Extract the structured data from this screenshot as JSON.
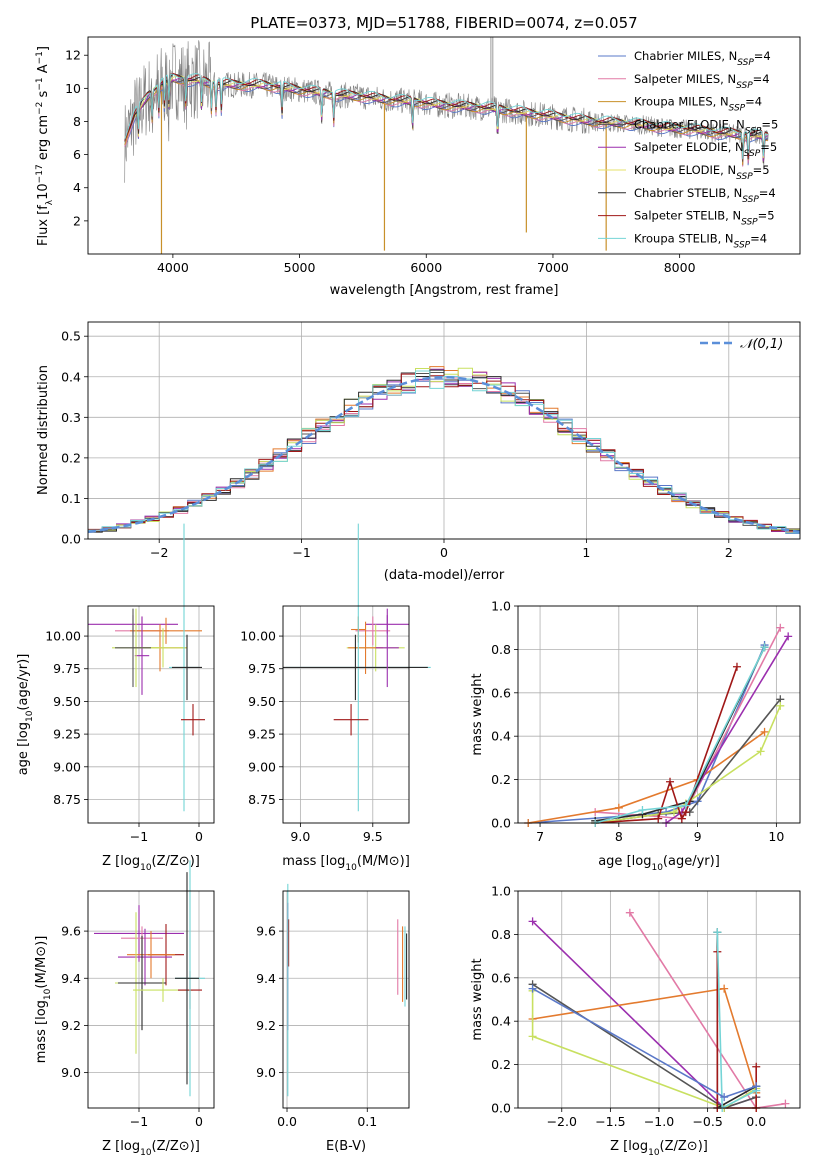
{
  "title": "PLATE=0373, MJD=51788, FIBERID=0074, z=0.057",
  "colors": {
    "spec": [
      "#5a78c8",
      "#e27aa6",
      "#c8902a",
      "#555555",
      "#9b2fae",
      "#e6e26a",
      "#2b2b2b",
      "#a01818",
      "#74d4d6"
    ],
    "hist": [
      "#5a78c8",
      "#e27aa6",
      "#e37a2e",
      "#555555",
      "#9b2fae",
      "#c8e060",
      "#2b2b2b",
      "#a01818",
      "#74d4d6"
    ],
    "normal_curve": "#5b8fd9",
    "grid": "#b0b0b0",
    "observed": "#808080"
  },
  "chart_data": [
    {
      "id": "spectrum",
      "type": "line",
      "title": "PLATE=0373, MJD=51788, FIBERID=0074, z=0.057",
      "xlabel": "wavelength [Angstrom, rest frame]",
      "ylabel": "Flux [f_λ10^-17 erg cm^-2 s^-1 A^-1]",
      "xlim": [
        3330,
        8950
      ],
      "ylim": [
        0,
        13.1
      ],
      "xticks": [
        "4000",
        "5000",
        "6000",
        "7000",
        "8000"
      ],
      "yticks": [
        "2",
        "4",
        "6",
        "8",
        "10",
        "12"
      ],
      "grid": false,
      "legend_position": "top-right",
      "legend": [
        "Chabrier MILES, N_SSP=4",
        "Salpeter MILES, N_SSP=4",
        "Kroupa MILES, N_SSP=4",
        "Chabrier ELODIE, N_SSP=5",
        "Salpeter ELODIE, N_SSP=5",
        "Kroupa ELODIE, N_SSP=5",
        "Chabrier STELIB, N_SSP=4",
        "Salpeter STELIB, N_SSP=5",
        "Kroupa STELIB, N_SSP=4"
      ],
      "model_continuum": {
        "x": [
          3620,
          3700,
          3800,
          3900,
          4000,
          4100,
          4200,
          4300,
          4500,
          4700,
          4900,
          5100,
          5300,
          5500,
          5700,
          5900,
          6100,
          6300,
          6500,
          6700,
          6900,
          7100,
          7300,
          7500,
          7700,
          7900,
          8100,
          8300,
          8500,
          8700
        ],
        "y": [
          6.8,
          8.4,
          9.5,
          10.2,
          10.6,
          10.5,
          10.5,
          10.3,
          10.2,
          10.2,
          10.0,
          9.8,
          9.6,
          9.5,
          9.3,
          9.2,
          9.0,
          8.9,
          8.8,
          8.6,
          8.4,
          8.2,
          8.0,
          7.9,
          7.8,
          7.6,
          7.5,
          7.3,
          7.2,
          7.1
        ]
      }
    },
    {
      "id": "residuals",
      "type": "line",
      "xlabel": "(data-model)/error",
      "ylabel": "Normed distribution",
      "xlim": [
        -2.5,
        2.5
      ],
      "ylim": [
        0,
        0.535
      ],
      "xticks": [
        "−2",
        "−1",
        "0",
        "1",
        "2"
      ],
      "yticks": [
        "0.0",
        "0.1",
        "0.2",
        "0.3",
        "0.4",
        "0.5"
      ],
      "grid": true,
      "legend_position": "top-right",
      "legend": [
        "𝒩(0,1)"
      ],
      "normal_curve": {
        "mean": 0,
        "sigma": 1
      },
      "histogram_bin_width": 0.1
    },
    {
      "id": "age-vs-Z",
      "type": "scatter",
      "xlabel": "Z [log10(Z/Z⊙)]",
      "ylabel": "age  [log10(age/yr)]",
      "xlim": [
        -1.85,
        0.25
      ],
      "ylim": [
        8.57,
        10.23
      ],
      "xticks": [
        "−1",
        "0"
      ],
      "yticks": [
        "8.75",
        "9.00",
        "9.25",
        "9.50",
        "9.75",
        "10.00"
      ],
      "grid": true,
      "points": [
        {
          "x": -1.1,
          "y": 10.09,
          "xerr": 0.75,
          "yerr": 0.07,
          "c": 4
        },
        {
          "x": -0.95,
          "y": 10.04,
          "xerr": 0.45,
          "yerr": 0.11,
          "c": 1
        },
        {
          "x": -0.55,
          "y": 10.04,
          "xerr": 0.6,
          "yerr": 0.1,
          "c": 2
        },
        {
          "x": -0.95,
          "y": 9.85,
          "xerr": 0.12,
          "yerr": 0.3,
          "c": 4
        },
        {
          "x": -0.65,
          "y": 9.91,
          "xerr": 0.45,
          "yerr": 0.18,
          "c": 2
        },
        {
          "x": -1.05,
          "y": 9.91,
          "xerr": 0.4,
          "yerr": 0.3,
          "c": 5
        },
        {
          "x": -0.6,
          "y": 9.91,
          "xerr": 0.4,
          "yerr": 0.15,
          "c": 5
        },
        {
          "x": -1.1,
          "y": 9.91,
          "xerr": 0.3,
          "yerr": 0.3,
          "c": 3
        },
        {
          "x": -0.25,
          "y": 9.76,
          "xerr": 0.25,
          "yerr": 1.1,
          "c": 8
        },
        {
          "x": -0.2,
          "y": 9.76,
          "xerr": 0.25,
          "yerr": 0.25,
          "c": 6
        },
        {
          "x": -0.1,
          "y": 9.36,
          "xerr": 0.2,
          "yerr": 0.12,
          "c": 7
        }
      ]
    },
    {
      "id": "age-vs-mass",
      "type": "scatter",
      "xlabel": "mass [log10(M/M⊙)]",
      "ylabel": "",
      "xlim": [
        8.88,
        9.75
      ],
      "ylim": [
        8.57,
        10.23
      ],
      "xticks": [
        "9.0",
        "9.5"
      ],
      "yticks": [
        "8.75",
        "9.00",
        "9.25",
        "9.50",
        "9.75",
        "10.00"
      ],
      "grid": true,
      "points": [
        {
          "x": 9.6,
          "y": 10.09,
          "xerr": 0.15,
          "yerr": 0.07,
          "c": 4
        },
        {
          "x": 9.5,
          "y": 10.04,
          "xerr": 0.12,
          "yerr": 0.11,
          "c": 1
        },
        {
          "x": 9.4,
          "y": 10.05,
          "xerr": 0.05,
          "yerr": 0.1,
          "c": 2
        },
        {
          "x": 9.52,
          "y": 9.91,
          "xerr": 0.2,
          "yerr": 0.18,
          "c": 5
        },
        {
          "x": 9.45,
          "y": 9.91,
          "xerr": 0.12,
          "yerr": 0.2,
          "c": 2
        },
        {
          "x": 9.4,
          "y": 9.76,
          "xerr": 0.5,
          "yerr": 1.1,
          "c": 8
        },
        {
          "x": 9.38,
          "y": 9.76,
          "xerr": 0.5,
          "yerr": 0.25,
          "c": 6
        },
        {
          "x": 9.35,
          "y": 9.36,
          "xerr": 0.12,
          "yerr": 0.12,
          "c": 7
        },
        {
          "x": 9.6,
          "y": 9.91,
          "xerr": 0.08,
          "yerr": 0.3,
          "c": 4
        }
      ]
    },
    {
      "id": "weight-vs-age",
      "type": "line",
      "xlabel": "age  [log10(age/yr)]",
      "ylabel": "mass weight",
      "xlim": [
        6.72,
        10.3
      ],
      "ylim": [
        0,
        1
      ],
      "xticks": [
        "7",
        "8",
        "9",
        "10"
      ],
      "yticks": [
        "0.0",
        "0.2",
        "0.4",
        "0.6",
        "0.8",
        "1.0"
      ],
      "grid": true,
      "series": [
        {
          "c": 0,
          "x": [
            6.85,
            8.0,
            8.6,
            9.0,
            9.85
          ],
          "y": [
            0.0,
            0.03,
            0.05,
            0.1,
            0.82
          ]
        },
        {
          "c": 1,
          "x": [
            7.7,
            8.5,
            8.8,
            10.05
          ],
          "y": [
            0.05,
            0.03,
            0.02,
            0.9
          ]
        },
        {
          "c": 2,
          "x": [
            6.85,
            8.0,
            9.0,
            9.85
          ],
          "y": [
            0.0,
            0.07,
            0.2,
            0.42
          ]
        },
        {
          "c": 3,
          "x": [
            7.7,
            8.5,
            8.9,
            10.05
          ],
          "y": [
            0.0,
            0.04,
            0.05,
            0.57
          ]
        },
        {
          "c": 4,
          "x": [
            8.6,
            8.8,
            10.15
          ],
          "y": [
            0.0,
            0.05,
            0.86
          ]
        },
        {
          "c": 5,
          "x": [
            7.7,
            8.7,
            8.85,
            9.8,
            10.05
          ],
          "y": [
            0.0,
            0.05,
            0.09,
            0.33,
            0.54
          ]
        },
        {
          "c": 6,
          "x": [
            7.7,
            8.3,
            8.9,
            9.85
          ],
          "y": [
            0.01,
            0.04,
            0.1,
            0.81
          ]
        },
        {
          "c": 7,
          "x": [
            7.7,
            8.5,
            8.65,
            8.8,
            8.85,
            9.5
          ],
          "y": [
            0.0,
            0.02,
            0.19,
            0.02,
            0.05,
            0.72
          ]
        },
        {
          "c": 8,
          "x": [
            7.7,
            8.3,
            8.85,
            9.85
          ],
          "y": [
            0.0,
            0.06,
            0.08,
            0.81
          ]
        }
      ]
    },
    {
      "id": "mass-vs-Z",
      "type": "scatter",
      "xlabel": "Z [log10(Z/Z⊙)]",
      "ylabel": "mass [log10(M/M⊙)]",
      "xlim": [
        -1.85,
        0.25
      ],
      "ylim": [
        8.85,
        9.77
      ],
      "xticks": [
        "−1",
        "0"
      ],
      "yticks": [
        "9.0",
        "9.2",
        "9.4",
        "9.6"
      ],
      "grid": true,
      "points": [
        {
          "x": -1.0,
          "y": 9.59,
          "xerr": 0.75,
          "yerr": 0.12,
          "c": 4
        },
        {
          "x": -0.95,
          "y": 9.57,
          "xerr": 0.35,
          "yerr": 0.05,
          "c": 1
        },
        {
          "x": -0.55,
          "y": 9.5,
          "xerr": 0.3,
          "yerr": 0.13,
          "c": 7
        },
        {
          "x": -0.8,
          "y": 9.5,
          "xerr": 0.4,
          "yerr": 0.1,
          "c": 2
        },
        {
          "x": -0.9,
          "y": 9.49,
          "xerr": 0.45,
          "yerr": 0.12,
          "c": 4
        },
        {
          "x": -1.05,
          "y": 9.38,
          "xerr": 0.35,
          "yerr": 0.3,
          "c": 5
        },
        {
          "x": -0.95,
          "y": 9.38,
          "xerr": 0.4,
          "yerr": 0.2,
          "c": 6
        },
        {
          "x": -0.6,
          "y": 9.35,
          "xerr": 0.5,
          "yerr": 0.05,
          "c": 5
        },
        {
          "x": -0.15,
          "y": 9.35,
          "xerr": 0.2,
          "yerr": 0.08,
          "c": 7
        },
        {
          "x": -0.15,
          "y": 9.4,
          "xerr": 0.25,
          "yerr": 0.5,
          "c": 8
        },
        {
          "x": -0.2,
          "y": 9.4,
          "xerr": 0.2,
          "yerr": 0.45,
          "c": 6
        }
      ]
    },
    {
      "id": "mass-vs-EBV",
      "type": "scatter",
      "xlabel": "E(B-V)",
      "ylabel": "",
      "xlim": [
        -0.005,
        0.152
      ],
      "ylim": [
        8.85,
        9.77
      ],
      "xticks": [
        "0.0",
        "0.1"
      ],
      "yticks": [
        "9.0",
        "9.2",
        "9.4",
        "9.6"
      ],
      "grid": true,
      "points": [
        {
          "x": 0.001,
          "y": 9.45,
          "xerr": 0,
          "yerr": 0.27,
          "c": 4
        },
        {
          "x": 0.002,
          "y": 9.55,
          "xerr": 0,
          "yerr": 0.1,
          "c": 7
        },
        {
          "x": 0.001,
          "y": 9.35,
          "xerr": 0,
          "yerr": 0.45,
          "c": 8
        },
        {
          "x": 0.138,
          "y": 9.49,
          "xerr": 0,
          "yerr": 0.16,
          "c": 1
        },
        {
          "x": 0.144,
          "y": 9.46,
          "xerr": 0,
          "yerr": 0.16,
          "c": 2
        },
        {
          "x": 0.147,
          "y": 9.45,
          "xerr": 0,
          "yerr": 0.17,
          "c": 8
        },
        {
          "x": 0.149,
          "y": 9.45,
          "xerr": 0,
          "yerr": 0.14,
          "c": 6
        }
      ]
    },
    {
      "id": "weight-vs-Z",
      "type": "line",
      "xlabel": "Z [log10(Z/Z⊙)]",
      "ylabel": "mass weight",
      "xlim": [
        -2.45,
        0.45
      ],
      "ylim": [
        0,
        1
      ],
      "xticks": [
        "−2.0",
        "−1.5",
        "−1.0",
        "−0.5",
        "0.0"
      ],
      "yticks": [
        "0.0",
        "0.2",
        "0.4",
        "0.6",
        "0.8",
        "1.0"
      ],
      "grid": true,
      "series": [
        {
          "c": 1,
          "x": [
            -1.3,
            0.0,
            0.3
          ],
          "y": [
            0.9,
            0.0,
            0.02
          ]
        },
        {
          "c": 4,
          "x": [
            -2.3,
            -0.33,
            0.0
          ],
          "y": [
            0.86,
            0.0,
            0.05
          ]
        },
        {
          "c": 2,
          "x": [
            -2.3,
            -0.33,
            0.0,
            0.0
          ],
          "y": [
            0.41,
            0.55,
            0.07,
            0.0
          ]
        },
        {
          "c": 3,
          "x": [
            -2.3,
            -0.33,
            0.0
          ],
          "y": [
            0.57,
            0.0,
            0.05
          ]
        },
        {
          "c": 5,
          "x": [
            -2.3,
            -2.3,
            -0.33,
            0.0
          ],
          "y": [
            0.54,
            0.33,
            0.0,
            0.09
          ]
        },
        {
          "c": 6,
          "x": [
            -0.4,
            -0.4,
            0.0
          ],
          "y": [
            0.81,
            0.0,
            0.1
          ]
        },
        {
          "c": 7,
          "x": [
            -0.4,
            -0.4,
            0.0,
            0.0
          ],
          "y": [
            0.72,
            0.0,
            0.0,
            0.19
          ]
        },
        {
          "c": 8,
          "x": [
            -0.4,
            -0.35,
            0.0
          ],
          "y": [
            0.81,
            0.0,
            0.08
          ]
        },
        {
          "c": 0,
          "x": [
            -2.3,
            -0.33,
            0.0
          ],
          "y": [
            0.55,
            0.05,
            0.1
          ]
        }
      ]
    }
  ]
}
